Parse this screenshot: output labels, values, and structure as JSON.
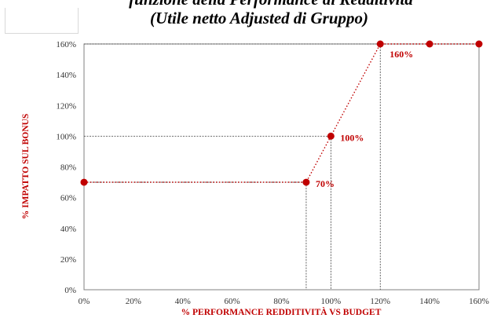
{
  "chart_data": {
    "type": "line",
    "title_lines": [
      "funzione della Performance di Redditività",
      "(Utile netto Adjusted di Gruppo)"
    ],
    "xlabel": "% PERFORMANCE REDDITIVITÀ VS BUDGET",
    "ylabel": "% IMPATTO SUL BONUS",
    "x_ticks": [
      "0%",
      "20%",
      "40%",
      "60%",
      "80%",
      "100%",
      "120%",
      "140%",
      "160%"
    ],
    "y_ticks": [
      "0%",
      "20%",
      "40%",
      "60%",
      "80%",
      "100%",
      "120%",
      "140%",
      "160%"
    ],
    "xlim": [
      0,
      160
    ],
    "ylim": [
      0,
      160
    ],
    "grid": false,
    "series": [
      {
        "x": [
          0,
          90,
          100,
          120,
          140,
          160
        ],
        "y": [
          70,
          70,
          100,
          160,
          160,
          160
        ]
      }
    ],
    "guide_lines": [
      {
        "x": 90,
        "y": 70
      },
      {
        "x": 100,
        "y": 100
      },
      {
        "x": 120,
        "y": 160
      }
    ],
    "point_labels": [
      {
        "x": 90,
        "y": 70,
        "text": "70%"
      },
      {
        "x": 100,
        "y": 100,
        "text": "100%"
      },
      {
        "x": 120,
        "y": 160,
        "text": "160%"
      }
    ],
    "colors": {
      "series": "#c00000",
      "axis_titles": "#c00000",
      "labels": "#c00000",
      "guides": "#404040",
      "frame": "#808080"
    }
  }
}
